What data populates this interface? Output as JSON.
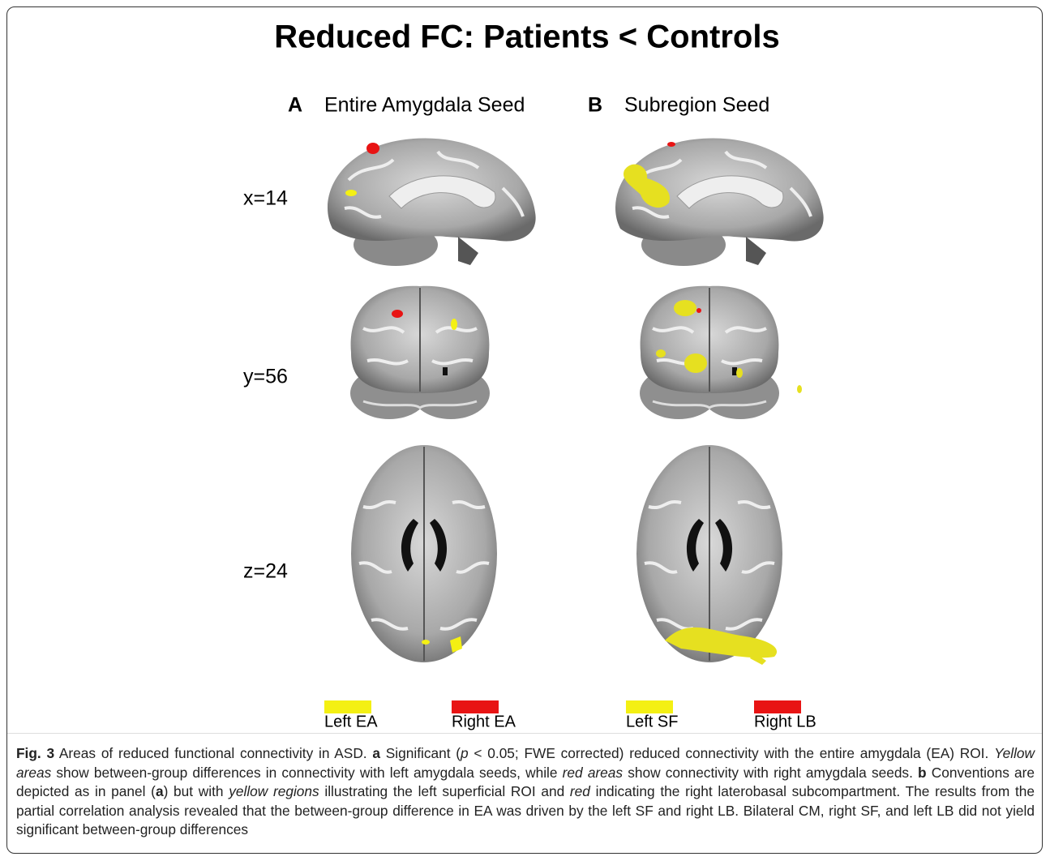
{
  "figure": {
    "title": "Reduced FC: Patients < Controls",
    "panels": [
      {
        "letter": "A",
        "label": "Entire Amygdala Seed"
      },
      {
        "letter": "B",
        "label": "Subregion Seed"
      }
    ],
    "slices": [
      "x=14",
      "y=56",
      "z=24"
    ],
    "legend": [
      {
        "label": "Left EA",
        "color": "#f4f013"
      },
      {
        "label": "Right EA",
        "color": "#e81414"
      },
      {
        "label": "Left SF",
        "color": "#f4f013"
      },
      {
        "label": "Right LB",
        "color": "#e81414"
      }
    ]
  },
  "caption": {
    "parts": [
      "Fig. 3",
      " Areas of reduced functional connectivity in ASD. ",
      "a",
      " Significant (",
      "p",
      " < 0.05; FWE corrected) reduced connectivity with the entire amygdala (EA) ROI. ",
      "Yellow areas",
      " show between-group differences in connectivity with left amygdala seeds, while ",
      "red areas",
      " show connectivity with right amygdala seeds. ",
      "b",
      " Conventions are depicted as in panel (",
      "a",
      ") but with ",
      "yellow regions",
      " illustrating the left superficial ROI and ",
      "red",
      " indicating the right laterobasal subcompartment. The results from the partial correlation analysis revealed that the between-group difference in EA was driven by the left SF and right LB. Bilateral CM, right SF, and left LB did not yield significant between-group differences"
    ]
  }
}
